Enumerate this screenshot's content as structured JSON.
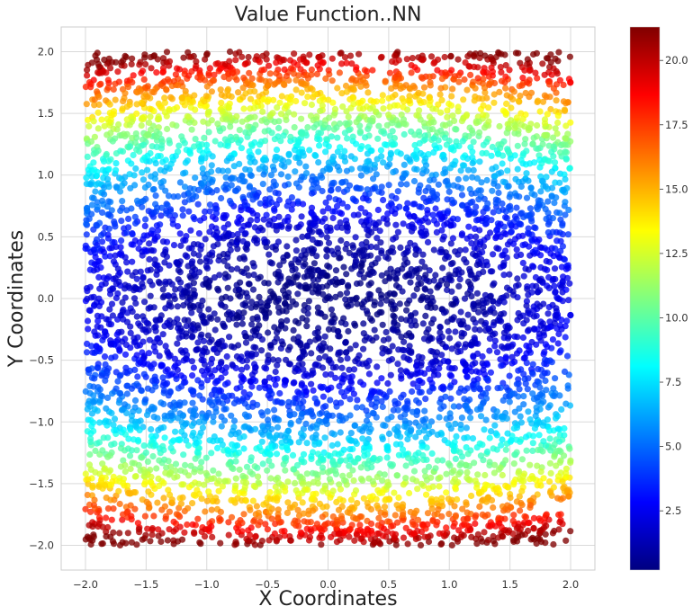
{
  "chart_data": {
    "type": "scatter",
    "title": "Value Function..NN",
    "xlabel": "X Coordinates",
    "ylabel": "Y Coordinates",
    "xlim": [
      -2.2,
      2.2
    ],
    "ylim": [
      -2.2,
      2.2
    ],
    "xticks": [
      -2.0,
      -1.5,
      -1.0,
      -0.5,
      0.0,
      0.5,
      1.0,
      1.5,
      2.0
    ],
    "yticks": [
      -2.0,
      -1.5,
      -1.0,
      -0.5,
      0.0,
      0.5,
      1.0,
      1.5,
      2.0
    ],
    "xtick_labels": [
      "−2.0",
      "−1.5",
      "−1.0",
      "−0.5",
      "0.0",
      "0.5",
      "1.0",
      "1.5",
      "2.0"
    ],
    "ytick_labels": [
      "−2.0",
      "−1.5",
      "−1.0",
      "−0.5",
      "0.0",
      "0.5",
      "1.0",
      "1.5",
      "2.0"
    ],
    "grid": true,
    "sample_domain": {
      "x": [
        -2.0,
        2.0
      ],
      "y": [
        -2.0,
        2.0
      ]
    },
    "approx_point_count": 6000,
    "colormap": "jet",
    "value_function": "approx. 0.15 + 5.2*y^2 + 0.6*x^2 (read from color)",
    "colorbar": {
      "range": [
        0.2,
        21.3
      ],
      "ticks": [
        2.5,
        5.0,
        7.5,
        10.0,
        12.5,
        15.0,
        17.5,
        20.0
      ],
      "tick_labels": [
        "2.5",
        "5.0",
        "7.5",
        "10.0",
        "12.5",
        "15.0",
        "17.5",
        "20.0"
      ]
    },
    "jet_stops": [
      "#000080",
      "#0000ff",
      "#0080ff",
      "#00ffff",
      "#80ff80",
      "#ffff00",
      "#ff8000",
      "#ff0000",
      "#800000"
    ]
  },
  "colors": {
    "grid": "#d9d9d9",
    "frame": "#cccccc",
    "text": "#222222"
  }
}
